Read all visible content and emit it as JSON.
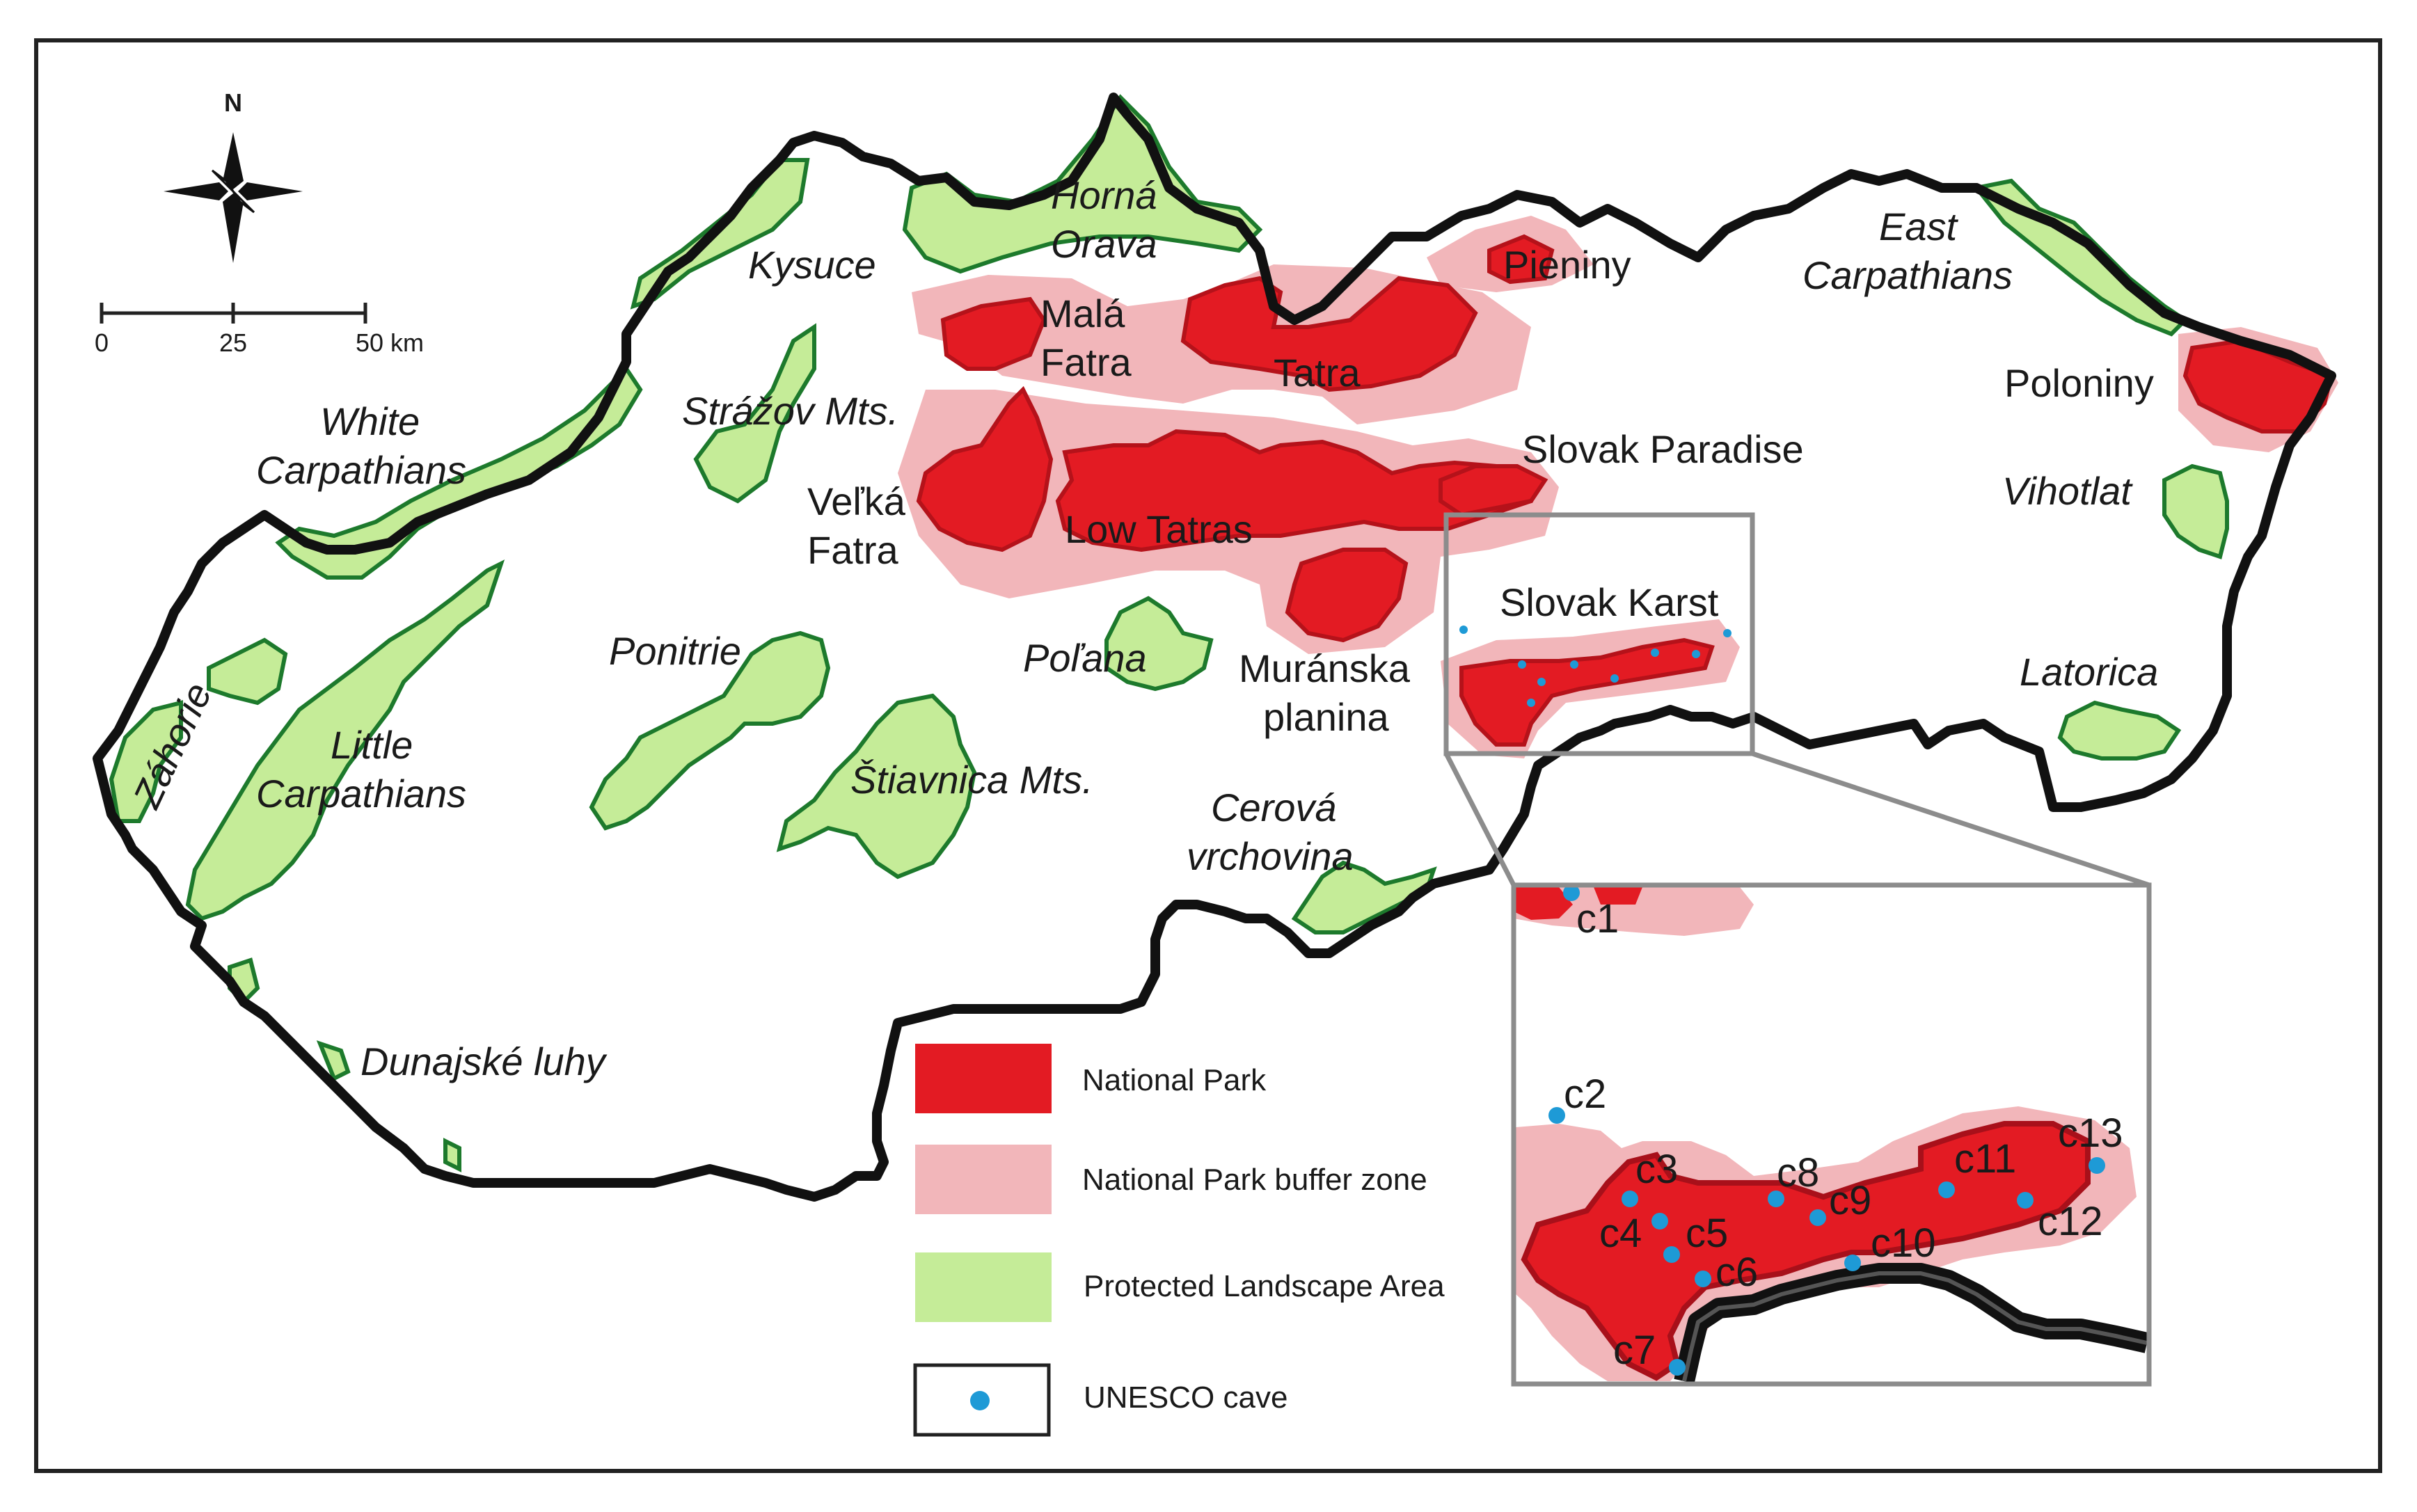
{
  "compass": {
    "north_label": "N"
  },
  "scale_bar": {
    "ticks": [
      "0",
      "25",
      "50 km"
    ]
  },
  "regions": {
    "horna_orava": [
      "Horná",
      "Orava"
    ],
    "kysuce": "Kysuce",
    "mala_fatra": [
      "Malá",
      "Fatra"
    ],
    "tatra": "Tatra",
    "pieniny": "Pieniny",
    "east_carpathians": [
      "East",
      "Carpathians"
    ],
    "poloniny": "Poloniny",
    "white_carpathians": [
      "White",
      "Carpathians"
    ],
    "strazov": "Strážov Mts.",
    "velka_fatra": [
      "Veľká",
      "Fatra"
    ],
    "low_tatras": "Low Tatras",
    "slovak_paradise": "Slovak Paradise",
    "vihorlat": "Vihotlat",
    "slovak_karst": "Slovak Karst",
    "ponitrie": "Ponitrie",
    "polana": "Poľana",
    "muranska": [
      "Muránska",
      "planina"
    ],
    "latorica": "Latorica",
    "zahorie": "Záhorie",
    "little_carpathians": [
      "Little",
      "Carpathians"
    ],
    "stiavnica": "Štiavnica Mts.",
    "cerova": [
      "Cerová",
      "vrchovina"
    ],
    "dunajske": "Dunajské luhy"
  },
  "legend": {
    "items": [
      {
        "label": "National Park",
        "color": "#e31b23"
      },
      {
        "label": "National Park buffer zone",
        "color": "#f2b6ba"
      },
      {
        "label": "Protected Landscape Area",
        "color": "#c5ec98"
      },
      {
        "label": "UNESCO cave",
        "color": "#1e9ad6"
      }
    ]
  },
  "caves": [
    "c1",
    "c2",
    "c3",
    "c4",
    "c5",
    "c6",
    "c7",
    "c8",
    "c9",
    "c10",
    "c11",
    "c12",
    "c13"
  ],
  "colors": {
    "national_park": "#e31b23",
    "national_park_dark": "#b5121a",
    "buffer_zone": "#f2b6ba",
    "protected_area": "#c5ec98",
    "protected_border": "#1d7a2c",
    "cave": "#1e9ad6",
    "border": "#111111",
    "inset_frame": "#8c8c8c"
  }
}
